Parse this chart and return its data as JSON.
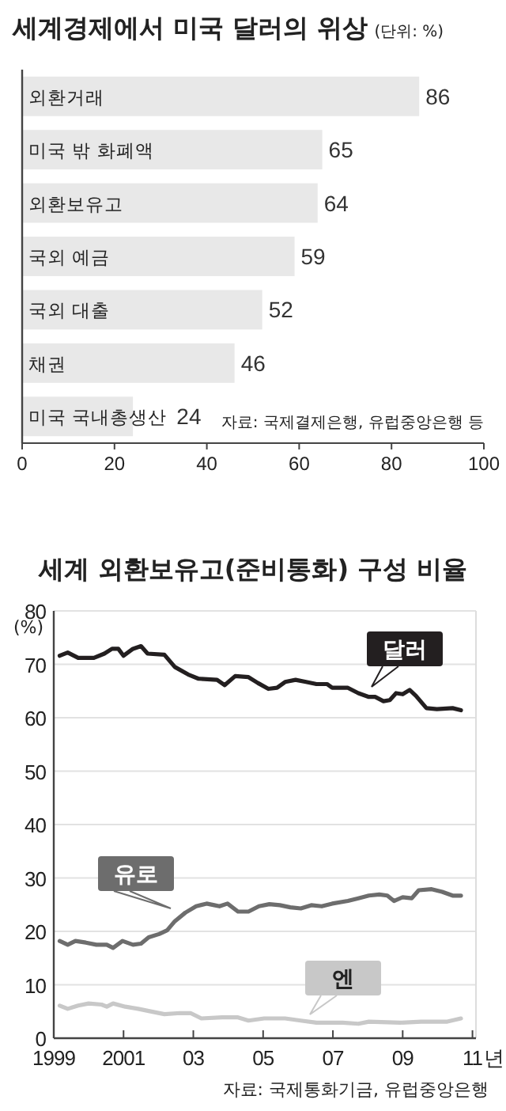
{
  "chart_data": [
    {
      "type": "bar",
      "orientation": "horizontal",
      "title": "세계경제에서 미국 달러의 위상",
      "subtitle": "(단위: %)",
      "categories": [
        "외환거래",
        "미국 밖 화폐액",
        "외환보유고",
        "국외 예금",
        "국외 대출",
        "채권",
        "미국 국내총생산"
      ],
      "values": [
        86,
        65,
        64,
        59,
        52,
        46,
        24
      ],
      "color": "#e8e8e8",
      "data_labels": true,
      "xlim": [
        0,
        100
      ],
      "xticks": [
        0,
        20,
        40,
        60,
        80,
        100
      ],
      "grid": false,
      "legend": false,
      "annotations": [
        "자료: 국제결제은행, 유럽중앙은행 등"
      ]
    },
    {
      "type": "line",
      "title": "세계 외환보유고(준비통화) 구성 비율",
      "ylabel": "(%)",
      "xlim": [
        1999,
        2011.1
      ],
      "xticks": [
        1999,
        2001,
        {
          "value": 2003,
          "label": "03"
        },
        {
          "value": 2005,
          "label": "05"
        },
        {
          "value": 2007,
          "label": "07"
        },
        {
          "value": 2009,
          "label": "09"
        },
        {
          "value": 2011,
          "label": "11"
        }
      ],
      "xlabel": "년",
      "ylim": [
        0,
        80
      ],
      "yticks": [
        0,
        10,
        20,
        30,
        40,
        50,
        60,
        70,
        80
      ],
      "grid": "y",
      "legend": false,
      "marker": "none",
      "line_style": "solid",
      "series": [
        {
          "name": "달러",
          "color": "#231f20",
          "x": [
            1999.17,
            1999.4,
            1999.7,
            2000.15,
            2000.45,
            2000.67,
            2000.85,
            2001.0,
            2001.27,
            2001.5,
            2001.69,
            2002.17,
            2002.47,
            2002.85,
            2003.15,
            2003.68,
            2003.9,
            2004.2,
            2004.58,
            2004.85,
            2005.15,
            2005.4,
            2005.63,
            2005.93,
            2006.23,
            2006.53,
            2006.83,
            2006.98,
            2007.43,
            2007.73,
            2008.03,
            2008.21,
            2008.45,
            2008.63,
            2008.81,
            2009.0,
            2009.2,
            2009.38,
            2009.68,
            2009.98,
            2010.43,
            2010.67
          ],
          "values": [
            71.6,
            72.2,
            71.2,
            71.2,
            72.0,
            72.9,
            72.9,
            71.6,
            72.9,
            73.4,
            72.0,
            71.8,
            69.5,
            68.1,
            67.3,
            67.1,
            66.1,
            67.8,
            67.6,
            66.5,
            65.4,
            65.6,
            66.7,
            67.1,
            66.7,
            66.3,
            66.3,
            65.6,
            65.6,
            64.6,
            63.9,
            63.9,
            63.1,
            63.3,
            64.6,
            64.4,
            65.2,
            64.1,
            61.8,
            61.6,
            61.8,
            61.4
          ]
        },
        {
          "name": "유로",
          "color": "#6d6d6d",
          "x": [
            1999.17,
            1999.4,
            1999.62,
            1999.92,
            2000.22,
            2000.52,
            2000.7,
            2000.97,
            2001.27,
            2001.5,
            2001.72,
            2002.02,
            2002.25,
            2002.47,
            2002.77,
            2003.08,
            2003.38,
            2003.6,
            2003.75,
            2003.98,
            2004.28,
            2004.58,
            2004.88,
            2005.18,
            2005.48,
            2005.78,
            2006.08,
            2006.38,
            2006.68,
            2006.98,
            2007.43,
            2007.73,
            2008.03,
            2008.33,
            2008.56,
            2008.75,
            2009.0,
            2009.26,
            2009.46,
            2009.83,
            2010.13,
            2010.43,
            2010.67
          ],
          "values": [
            18.2,
            17.5,
            18.2,
            17.9,
            17.5,
            17.5,
            16.9,
            18.2,
            17.5,
            17.7,
            18.9,
            19.5,
            20.2,
            21.9,
            23.5,
            24.7,
            25.2,
            24.9,
            24.7,
            25.2,
            23.7,
            23.7,
            24.7,
            25.1,
            24.9,
            24.5,
            24.3,
            24.9,
            24.7,
            25.2,
            25.7,
            26.2,
            26.7,
            26.9,
            26.7,
            25.7,
            26.4,
            26.2,
            27.7,
            27.9,
            27.4,
            26.7,
            26.7
          ]
        },
        {
          "name": "엔",
          "color": "#c8c8c8",
          "x": [
            1999.17,
            1999.4,
            1999.7,
            2000.0,
            2000.37,
            2000.52,
            2000.7,
            2001.05,
            2001.42,
            2001.72,
            2002.17,
            2002.62,
            2002.92,
            2003.23,
            2003.83,
            2004.28,
            2004.58,
            2005.03,
            2005.63,
            2006.08,
            2006.53,
            2007.28,
            2007.73,
            2008.03,
            2008.93,
            2009.53,
            2010.28,
            2010.67
          ],
          "values": [
            6.1,
            5.5,
            6.1,
            6.5,
            6.3,
            5.9,
            6.5,
            5.9,
            5.5,
            5.1,
            4.5,
            4.7,
            4.7,
            3.7,
            3.9,
            3.9,
            3.3,
            3.7,
            3.7,
            3.3,
            2.9,
            2.9,
            2.7,
            3.1,
            2.9,
            3.1,
            3.1,
            3.7
          ]
        }
      ],
      "annotations": [
        "자료: 국제통화기금, 유럽중앙은행"
      ]
    }
  ]
}
